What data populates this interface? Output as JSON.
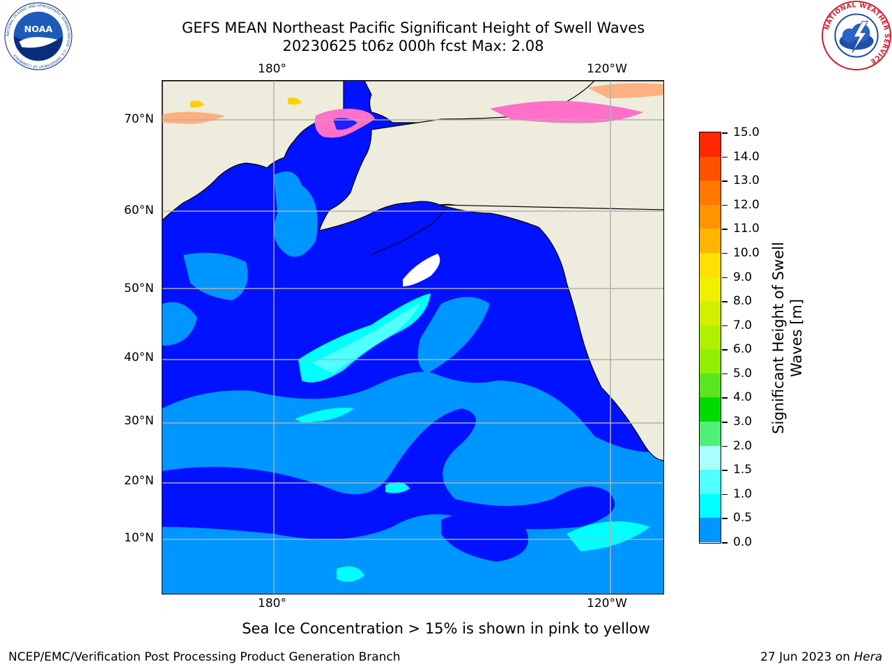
{
  "title_line1": "GEFS MEAN Northeast Pacific Significant Height of Swell Waves",
  "title_line2": "20230625 t06z 000h fcst   Max: 2.08",
  "map": {
    "lat_labels": [
      "70°N",
      "60°N",
      "50°N",
      "40°N",
      "30°N",
      "20°N",
      "10°N"
    ],
    "lon_labels_top": [
      "180°",
      "120°W"
    ],
    "lon_labels_bottom": [
      "180°",
      "120°W"
    ],
    "land_color": "#eeecdc",
    "ocean_base_color": "#0012ff",
    "gridline_color": "#b0b0b0"
  },
  "colorbar": {
    "title": "Significant Height of Swell Waves [m]",
    "title_line1": "Significant Height of Swell",
    "title_line2": "Waves [m]",
    "ticks": [
      "15.0",
      "14.0",
      "13.0",
      "12.0",
      "11.0",
      "10.0",
      "9.0",
      "8.0",
      "7.0",
      "6.0",
      "5.0",
      "4.0",
      "3.0",
      "2.0",
      "1.5",
      "1.0",
      "0.5",
      "0.0"
    ],
    "colors_top_to_bottom": [
      "#ff0000",
      "#ff2800",
      "#ff5000",
      "#ff7800",
      "#ff9400",
      "#ffb400",
      "#ffe000",
      "#f0f000",
      "#d0f000",
      "#b0f000",
      "#90f000",
      "#5ae61e",
      "#00dc00",
      "#50f078",
      "#aaffff",
      "#50ffff",
      "#00ffff",
      "#0096ff",
      "#0000ff"
    ]
  },
  "footnote": "Sea Ice Concentration > 15% is shown in pink to yellow",
  "footer_left": "NCEP/EMC/Verification Post Processing Product Generation Branch",
  "footer_right_date": "27 Jun 2023 on",
  "footer_right_host": "Hera",
  "logos": {
    "noaa_text": "NOAA",
    "noaa_ring_text": "NATIONAL OCEANIC AND ATMOSPHERIC ADMINISTRATION · U.S. DEPARTMENT OF COMMERCE",
    "nws_ring_text": "NATIONAL WEATHER SERVICE"
  }
}
